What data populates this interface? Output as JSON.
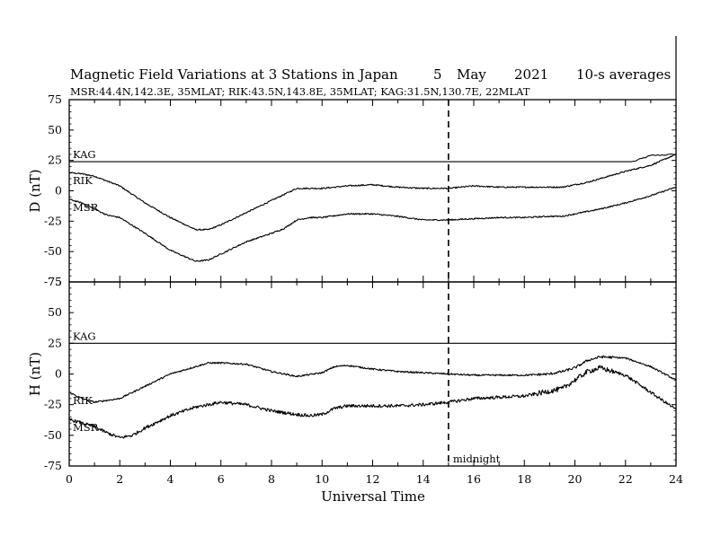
{
  "title": {
    "main": "Magnetic Field Variations at 3 Stations in Japan",
    "day": "5",
    "month": "May",
    "year": "2021",
    "resolution": "10-s averages"
  },
  "subtitle": "MSR:44.4N,142.3E, 35MLAT;  RIK:43.5N,143.8E, 35MLAT;  KAG:31.5N,130.7E, 22MLAT",
  "chart_data": [
    {
      "type": "line",
      "ylabel": "D (nT)",
      "ylim": [
        -75,
        75
      ],
      "yticks": [
        75,
        50,
        25,
        0,
        -25,
        -50,
        -75
      ],
      "xlim": [
        0,
        24
      ],
      "series": [
        {
          "name": "KAG",
          "x": [
            0,
            22.3,
            23.0,
            24
          ],
          "y": [
            24,
            24,
            29,
            30
          ]
        },
        {
          "name": "RIK",
          "x": [
            0,
            0.5,
            1,
            2,
            3,
            4,
            5,
            5.5,
            6,
            7,
            8,
            8.5,
            9,
            9.5,
            10,
            11,
            12,
            13,
            14,
            15,
            16,
            17,
            18,
            19,
            19.5,
            20,
            20.5,
            21,
            22,
            23,
            24
          ],
          "y": [
            15,
            14,
            12,
            4,
            -10,
            -22,
            -32,
            -32,
            -28,
            -18,
            -8,
            -3,
            2,
            2,
            2,
            4,
            5,
            3,
            2,
            2,
            4,
            3,
            3,
            3,
            3,
            5,
            7,
            10,
            16,
            21,
            30
          ]
        },
        {
          "name": "MSR",
          "x": [
            0,
            0.5,
            1,
            1.5,
            2,
            3,
            4,
            5,
            5.5,
            6,
            7,
            8,
            8.5,
            9,
            9.5,
            10,
            11,
            12,
            13,
            14,
            15,
            16,
            17,
            18,
            19,
            19.5,
            20,
            20.5,
            21,
            22,
            23,
            24
          ],
          "y": [
            -7,
            -10,
            -15,
            -20,
            -22,
            -35,
            -49,
            -58,
            -57,
            -52,
            -42,
            -35,
            -31,
            -24,
            -22,
            -22,
            -19,
            -19,
            -21,
            -24,
            -24,
            -23,
            -22,
            -22,
            -21,
            -21,
            -19,
            -17,
            -15,
            -10,
            -4,
            3
          ]
        }
      ]
    },
    {
      "type": "line",
      "ylabel": "H (nT)",
      "ylim": [
        -75,
        75
      ],
      "yticks": [
        75,
        50,
        25,
        0,
        -25,
        -50,
        -75
      ],
      "xlim": [
        0,
        24
      ],
      "series": [
        {
          "name": "KAG",
          "x": [
            0,
            24
          ],
          "y": [
            25,
            25
          ]
        },
        {
          "name": "RIK",
          "x": [
            0,
            0.5,
            1,
            2,
            3,
            4,
            5,
            5.5,
            6,
            7,
            8,
            9,
            10,
            10.5,
            11,
            12,
            13,
            14,
            15,
            16,
            17,
            18,
            19,
            19.5,
            20,
            20.5,
            21,
            22,
            23,
            24
          ],
          "y": [
            -15,
            -20,
            -23,
            -20,
            -10,
            0,
            6,
            9,
            9,
            8,
            2,
            -2,
            1,
            6,
            7,
            4,
            2,
            1,
            0,
            -1,
            -1,
            -1,
            0,
            2,
            5,
            11,
            14,
            13,
            6,
            -5
          ]
        },
        {
          "name": "MSR",
          "x": [
            0,
            0.5,
            1,
            1.5,
            2,
            2.5,
            3,
            4,
            5,
            5.5,
            6,
            7,
            8,
            9,
            9.5,
            10,
            10.5,
            11,
            12,
            13,
            14,
            15,
            16,
            17,
            18,
            19,
            19.5,
            20,
            20.5,
            21,
            22,
            23,
            24
          ],
          "y": [
            -37,
            -40,
            -43,
            -48,
            -52,
            -50,
            -44,
            -34,
            -27,
            -25,
            -23,
            -25,
            -30,
            -33,
            -34,
            -33,
            -28,
            -26,
            -26,
            -26,
            -25,
            -23,
            -20,
            -19,
            -18,
            -14,
            -12,
            -5,
            2,
            5,
            -1,
            -15,
            -29
          ]
        }
      ]
    }
  ],
  "x_axis": {
    "label": "Universal Time",
    "ticks": [
      0,
      2,
      4,
      6,
      8,
      10,
      12,
      14,
      16,
      18,
      20,
      22,
      24
    ]
  },
  "annotation": {
    "midnight_ut": 15,
    "label": "midnight"
  }
}
